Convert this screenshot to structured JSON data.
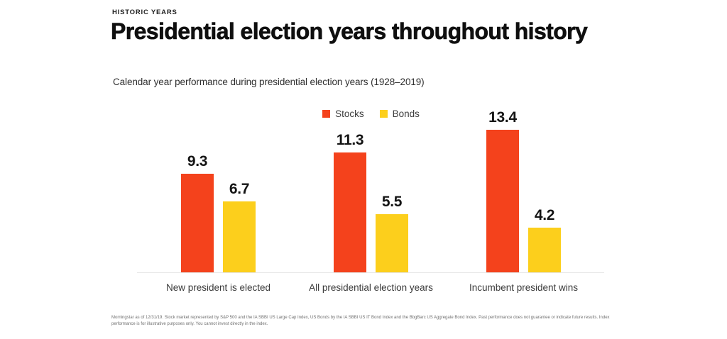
{
  "page": {
    "eyebrow": "HISTORIC YEARS",
    "title": "Presidential election years throughout history",
    "subtitle": "Calendar year performance during presidential election years (1928–2019)",
    "footnote": "Morningstar as of 12/31/19. Stock market represented by S&P 500 and the IA SBBI US Large Cap Index, US Bonds by the IA SBBI US IT Bond Index and the BbgBarc US Aggregate Bond Index. Past performance does not guarantee or indicate future results. Index performance is for illustrative purposes only. You cannot invest directly in the index."
  },
  "chart_data": {
    "type": "bar",
    "title": "Presidential election years throughout history",
    "subtitle": "Calendar year performance during presidential election years (1928–2019)",
    "categories": [
      "New president is elected",
      "All presidential election years",
      "Incumbent president wins"
    ],
    "series": [
      {
        "name": "Stocks",
        "color": "#F4421C",
        "values": [
          9.3,
          11.3,
          13.4
        ]
      },
      {
        "name": "Bonds",
        "color": "#FCCF1C",
        "values": [
          6.7,
          5.5,
          4.2
        ]
      }
    ],
    "ylim": [
      0,
      15.6
    ],
    "value_labels": true,
    "legend_position": "top-center",
    "grid": false,
    "xlabel": "",
    "ylabel": ""
  }
}
